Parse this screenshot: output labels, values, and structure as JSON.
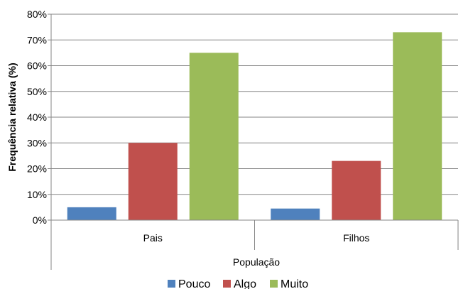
{
  "chart_data": {
    "type": "bar",
    "categories": [
      "Pais",
      "Filhos"
    ],
    "series": [
      {
        "name": "Pouco",
        "values": [
          5,
          4.5
        ],
        "color": "#4F81BD"
      },
      {
        "name": "Algo",
        "values": [
          30,
          23
        ],
        "color": "#C0504D"
      },
      {
        "name": "Muito",
        "values": [
          65,
          73
        ],
        "color": "#9BBB59"
      }
    ],
    "title": "",
    "xlabel": "População",
    "ylabel": "Frequência relativa (%)",
    "ylim": [
      0,
      80
    ],
    "yticks": [
      "0%",
      "10%",
      "20%",
      "30%",
      "40%",
      "50%",
      "60%",
      "70%",
      "80%"
    ],
    "grid": true,
    "legend_position": "bottom"
  }
}
